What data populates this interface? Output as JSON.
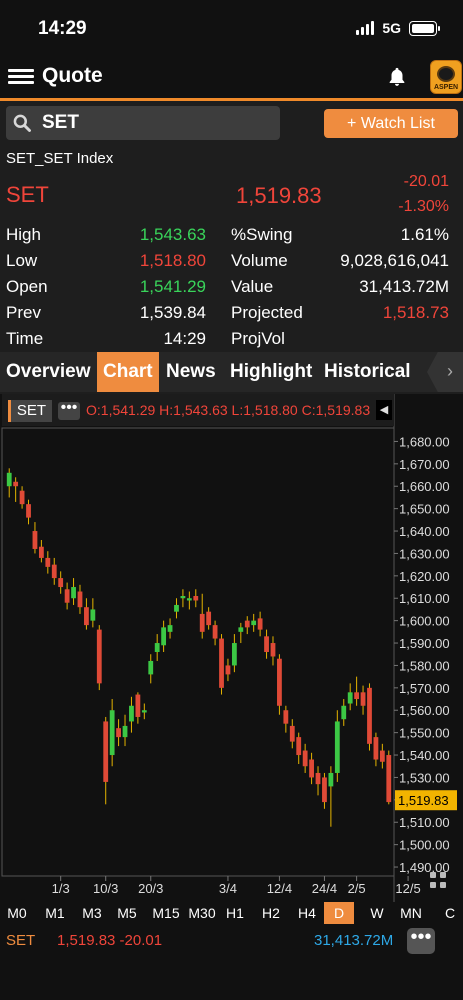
{
  "status_bar": {
    "time": "14:29",
    "network": "5G"
  },
  "header": {
    "title": "Quote",
    "logo_text": "ASPEN"
  },
  "search": {
    "value": "SET",
    "watch_label": "+ Watch List"
  },
  "quote": {
    "full_name": "SET_SET Index",
    "symbol": "SET",
    "last": "1,519.83",
    "change": "-20.01",
    "change_pct": "-1.30%",
    "stats_left": [
      {
        "label": "High",
        "value": "1,543.63",
        "color": "#39d45a"
      },
      {
        "label": "Low",
        "value": "1,518.80",
        "color": "#f0453a"
      },
      {
        "label": "Open",
        "value": "1,541.29",
        "color": "#39d45a"
      },
      {
        "label": "Prev",
        "value": "1,539.84",
        "color": "#ffffff"
      },
      {
        "label": "Time",
        "value": "14:29",
        "color": "#ffffff"
      }
    ],
    "stats_right": [
      {
        "label": "%Swing",
        "value": "1.61%",
        "color": "#ffffff"
      },
      {
        "label": "Volume",
        "value": "9,028,616,041",
        "color": "#ffffff"
      },
      {
        "label": "Value",
        "value": "31,413.72M",
        "color": "#ffffff"
      },
      {
        "label": "Projected",
        "value": "1,518.73",
        "color": "#f0453a"
      },
      {
        "label": "ProjVol",
        "value": "",
        "color": "#ffffff"
      }
    ]
  },
  "tabs": [
    "Overview",
    "Chart",
    "News",
    "Highlight",
    "Historical"
  ],
  "active_tab": "Chart",
  "chart_header": {
    "symbol": "SET",
    "ohlc": "O:1,541.29 H:1,543.63 L:1,518.80 C:1,519.83"
  },
  "chart_data": {
    "type": "candlestick",
    "ylim": [
      1486,
      1686
    ],
    "y_ticks": [
      "1,680.00",
      "1,670.00",
      "1,660.00",
      "1,650.00",
      "1,640.00",
      "1,630.00",
      "1,620.00",
      "1,610.00",
      "1,600.00",
      "1,590.00",
      "1,580.00",
      "1,570.00",
      "1,560.00",
      "1,550.00",
      "1,540.00",
      "1,530.00",
      "1,520.00",
      "1,510.00",
      "1,500.00",
      "1,490.00"
    ],
    "x_ticks": [
      "1/3",
      "10/3",
      "20/3",
      "3/4",
      "12/4",
      "24/4",
      "2/5",
      "12/5"
    ],
    "x_tick_index": [
      8,
      15,
      22,
      34,
      42,
      49,
      54,
      62
    ],
    "last_price": "1,519.83",
    "candles": [
      [
        1660,
        1666,
        1657,
        1668,
        1655
      ],
      [
        1662,
        1660,
        1664,
        1653
      ],
      [
        1658,
        1652,
        1660,
        1650
      ],
      [
        1652,
        1646,
        1654,
        1643
      ],
      [
        1640,
        1632,
        1644,
        1630
      ],
      [
        1633,
        1628,
        1636,
        1626
      ],
      [
        1628,
        1624,
        1631,
        1621
      ],
      [
        1625,
        1619,
        1628,
        1616
      ],
      [
        1619,
        1615,
        1622,
        1612
      ],
      [
        1614,
        1608,
        1617,
        1605
      ],
      [
        1610,
        1615,
        1619,
        1607
      ],
      [
        1613,
        1606,
        1616,
        1603
      ],
      [
        1606,
        1598,
        1610,
        1596
      ],
      [
        1600,
        1605,
        1610,
        1597
      ],
      [
        1596,
        1572,
        1598,
        1569
      ],
      [
        1555,
        1528,
        1557,
        1518
      ],
      [
        1540,
        1560,
        1565,
        1535
      ],
      [
        1552,
        1548,
        1556,
        1544
      ],
      [
        1548,
        1553,
        1558,
        1544
      ],
      [
        1555,
        1562,
        1566,
        1550
      ],
      [
        1567,
        1557,
        1568,
        1554
      ],
      [
        1559,
        1560,
        1563,
        1556
      ],
      [
        1576,
        1582,
        1585,
        1572
      ],
      [
        1586,
        1590,
        1594,
        1582
      ],
      [
        1589,
        1597,
        1600,
        1586
      ],
      [
        1595,
        1598,
        1601,
        1592
      ],
      [
        1604,
        1607,
        1610,
        1601
      ],
      [
        1610,
        1611,
        1614,
        1606
      ],
      [
        1609,
        1610,
        1613,
        1605
      ],
      [
        1611,
        1609,
        1614,
        1606
      ],
      [
        1603,
        1595,
        1612,
        1592
      ],
      [
        1604,
        1598,
        1606,
        1596
      ],
      [
        1598,
        1592,
        1600,
        1589
      ],
      [
        1592,
        1570,
        1594,
        1567
      ],
      [
        1580,
        1576,
        1583,
        1573
      ],
      [
        1580,
        1590,
        1594,
        1577
      ],
      [
        1595,
        1597,
        1599,
        1590
      ],
      [
        1600,
        1597,
        1602,
        1594
      ],
      [
        1598,
        1600,
        1603,
        1595
      ],
      [
        1601,
        1596,
        1604,
        1593
      ],
      [
        1593,
        1586,
        1596,
        1583
      ],
      [
        1590,
        1584,
        1593,
        1580
      ],
      [
        1583,
        1562,
        1585,
        1558
      ],
      [
        1560,
        1554,
        1562,
        1550
      ],
      [
        1553,
        1546,
        1556,
        1543
      ],
      [
        1548,
        1540,
        1550,
        1536
      ],
      [
        1542,
        1535,
        1545,
        1532
      ],
      [
        1538,
        1530,
        1541,
        1527
      ],
      [
        1532,
        1527,
        1535,
        1522
      ],
      [
        1530,
        1519,
        1532,
        1516
      ],
      [
        1526,
        1532,
        1535,
        1508
      ],
      [
        1532,
        1555,
        1560,
        1528
      ],
      [
        1556,
        1562,
        1565,
        1553
      ],
      [
        1563,
        1568,
        1572,
        1560
      ],
      [
        1568,
        1565,
        1575,
        1562
      ],
      [
        1568,
        1562,
        1571,
        1558
      ],
      [
        1570,
        1545,
        1572,
        1542
      ],
      [
        1548,
        1538,
        1550,
        1535
      ],
      [
        1542,
        1537,
        1545,
        1534
      ],
      [
        1540,
        1519,
        1542,
        1518
      ]
    ]
  },
  "periods": [
    "M0",
    "M1",
    "M3",
    "M5",
    "M15",
    "M30",
    "H1",
    "H2",
    "H4",
    "D",
    "W",
    "MN",
    "C"
  ],
  "active_period": "D",
  "footer": {
    "symbol": "SET",
    "price_change": "1,519.83 -20.01",
    "value": "31,413.72M"
  }
}
